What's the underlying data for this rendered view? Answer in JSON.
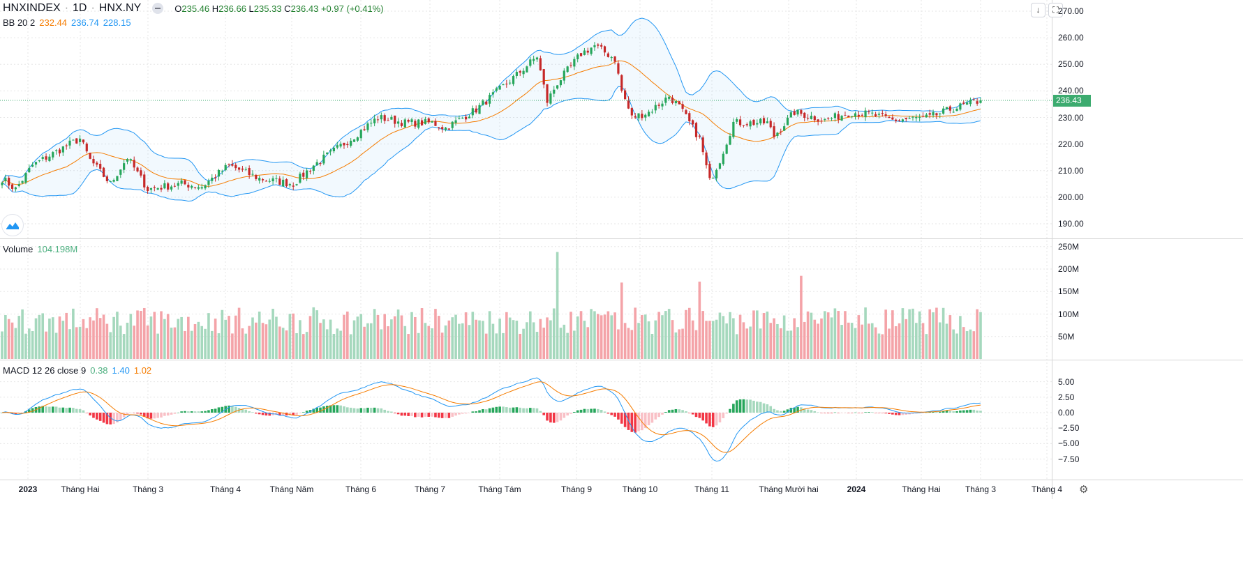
{
  "header": {
    "symbol": "HNXINDEX",
    "interval": "1D",
    "exchange": "HNX.NY",
    "sep": "·",
    "o_label": "O",
    "o": "235.46",
    "h_label": "H",
    "h": "236.66",
    "l_label": "L",
    "l": "235.33",
    "c_label": "C",
    "c": "236.43",
    "change": "+0.97 (+0.41%)"
  },
  "bb": {
    "label": "BB 20 2",
    "basis": "232.44",
    "upper": "236.74",
    "lower": "228.15"
  },
  "volume": {
    "label": "Volume",
    "value": "104.198M"
  },
  "macd": {
    "label": "MACD 12 26 close 9",
    "hist": "0.38",
    "macd": "1.40",
    "signal": "1.02"
  },
  "controls": {
    "scroll_down": "↓",
    "fullscreen": "⛶"
  },
  "last_price_tag": "236.43",
  "price_axis": [
    "270.00",
    "260.00",
    "250.00",
    "240.00",
    "230.00",
    "220.00",
    "210.00",
    "200.00",
    "190.00"
  ],
  "volume_axis": [
    "250M",
    "200M",
    "150M",
    "100M",
    "50M"
  ],
  "macd_axis": [
    "5.00",
    "2.50",
    "0.00",
    "−2.50",
    "−5.00",
    "−7.50"
  ],
  "time_axis": [
    "2023",
    "Tháng Hai",
    "Tháng 3",
    "Tháng 4",
    "Tháng Năm",
    "Tháng 6",
    "Tháng 7",
    "Tháng Tám",
    "Tháng 9",
    "Tháng 10",
    "Tháng 11",
    "Tháng Mười hai",
    "2024",
    "Tháng Hai",
    "Tháng 3",
    "Tháng 4"
  ],
  "colors": {
    "up": "#26a65b",
    "down": "#c62828",
    "vol_up": "#a5d8bd",
    "vol_down": "#f4a3a8",
    "bb_band": "#2196f3",
    "bb_basis": "#f57c00",
    "macd": "#2196f3",
    "signal": "#f57c00"
  },
  "chart_data": {
    "type": "candlestick",
    "bars": 290,
    "close_anchors": [
      [
        0,
        207
      ],
      [
        4,
        203
      ],
      [
        9,
        212
      ],
      [
        20,
        220
      ],
      [
        23,
        222
      ],
      [
        26,
        214
      ],
      [
        32,
        205
      ],
      [
        37,
        215
      ],
      [
        43,
        203
      ],
      [
        53,
        205
      ],
      [
        59,
        204
      ],
      [
        67,
        212
      ],
      [
        76,
        207
      ],
      [
        86,
        205
      ],
      [
        92,
        212
      ],
      [
        103,
        222
      ],
      [
        111,
        230
      ],
      [
        119,
        228
      ],
      [
        127,
        228
      ],
      [
        131,
        226
      ],
      [
        140,
        233
      ],
      [
        152,
        246
      ],
      [
        158,
        253
      ],
      [
        161,
        236
      ],
      [
        164,
        243
      ],
      [
        171,
        254
      ],
      [
        175,
        257
      ],
      [
        181,
        252
      ],
      [
        183,
        240
      ],
      [
        186,
        230
      ],
      [
        191,
        232
      ],
      [
        197,
        238
      ],
      [
        200,
        234
      ],
      [
        206,
        222
      ],
      [
        209,
        206
      ],
      [
        212,
        214
      ],
      [
        216,
        228
      ],
      [
        226,
        228
      ],
      [
        228,
        223
      ],
      [
        234,
        232
      ],
      [
        243,
        229
      ],
      [
        251,
        232
      ],
      [
        257,
        231
      ],
      [
        263,
        229
      ],
      [
        274,
        230
      ],
      [
        280,
        233
      ],
      [
        289,
        236.43
      ]
    ],
    "price_range": [
      187,
      273
    ],
    "volume_range_millions": [
      0,
      270
    ],
    "macd_range": [
      -8.5,
      6
    ]
  }
}
